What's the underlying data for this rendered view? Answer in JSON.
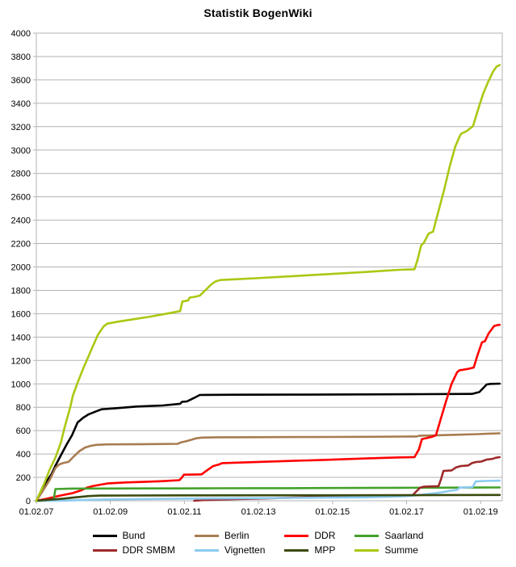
{
  "chart_data": {
    "type": "line",
    "title": "Statistik BogenWiki",
    "grid": "horizontal",
    "grid_color": "#b3b3b3",
    "axis_color": "#b3b3b3",
    "legend_position": "bottom",
    "x_axis": {
      "range": [
        2007.085,
        2019.67
      ],
      "tick_positions": [
        2007.085,
        2009.085,
        2011.085,
        2013.085,
        2015.085,
        2017.085,
        2019.085
      ],
      "tick_labels": [
        "01.02.07",
        "01.02.09",
        "01.02.11",
        "01.02.13",
        "01.02.15",
        "01.02.17",
        "01.02.19"
      ]
    },
    "y_axis": {
      "range": [
        0,
        4000
      ],
      "tick_step": 200
    },
    "legend_rows": [
      [
        "Bund",
        "Berlin",
        "DDR",
        "Saarland"
      ],
      [
        "DDR SMBM",
        "Vignetten",
        "MPP",
        "Summe"
      ]
    ],
    "series": [
      {
        "name": "Bund",
        "color": "#000000",
        "points": [
          [
            2007.085,
            0
          ],
          [
            2007.2,
            60
          ],
          [
            2007.35,
            160
          ],
          [
            2007.5,
            230
          ],
          [
            2007.6,
            300
          ],
          [
            2007.75,
            390
          ],
          [
            2007.9,
            480
          ],
          [
            2008.05,
            560
          ],
          [
            2008.2,
            670
          ],
          [
            2008.35,
            710
          ],
          [
            2008.5,
            740
          ],
          [
            2008.7,
            765
          ],
          [
            2008.85,
            783
          ],
          [
            2009.2,
            790
          ],
          [
            2009.8,
            806
          ],
          [
            2010.5,
            815
          ],
          [
            2010.97,
            830
          ],
          [
            2011.02,
            846
          ],
          [
            2011.15,
            850
          ],
          [
            2011.25,
            865
          ],
          [
            2011.35,
            880
          ],
          [
            2011.5,
            905
          ],
          [
            2012.5,
            907
          ],
          [
            2014,
            908
          ],
          [
            2016,
            910
          ],
          [
            2017.5,
            912
          ],
          [
            2018.85,
            914
          ],
          [
            2019.05,
            930
          ],
          [
            2019.25,
            995
          ],
          [
            2019.35,
            1000
          ],
          [
            2019.6,
            1002
          ]
        ]
      },
      {
        "name": "Berlin",
        "color": "#a87c50",
        "points": [
          [
            2007.085,
            0
          ],
          [
            2007.25,
            80
          ],
          [
            2007.45,
            180
          ],
          [
            2007.6,
            280
          ],
          [
            2007.7,
            310
          ],
          [
            2007.8,
            322
          ],
          [
            2007.95,
            332
          ],
          [
            2008.1,
            380
          ],
          [
            2008.25,
            425
          ],
          [
            2008.4,
            455
          ],
          [
            2008.55,
            470
          ],
          [
            2008.7,
            478
          ],
          [
            2009,
            482
          ],
          [
            2010,
            484
          ],
          [
            2010.9,
            487
          ],
          [
            2011,
            500
          ],
          [
            2011.1,
            507
          ],
          [
            2011.25,
            520
          ],
          [
            2011.4,
            534
          ],
          [
            2011.55,
            540
          ],
          [
            2012,
            543
          ],
          [
            2013,
            544
          ],
          [
            2014,
            545
          ],
          [
            2015,
            546
          ],
          [
            2016,
            547
          ],
          [
            2017,
            549
          ],
          [
            2017.35,
            550
          ],
          [
            2017.45,
            557
          ],
          [
            2018,
            561
          ],
          [
            2018.5,
            565
          ],
          [
            2019,
            570
          ],
          [
            2019.3,
            574
          ],
          [
            2019.6,
            577
          ]
        ]
      },
      {
        "name": "DDR",
        "color": "#ff0000",
        "points": [
          [
            2007.085,
            0
          ],
          [
            2007.4,
            20
          ],
          [
            2007.7,
            42
          ],
          [
            2008.05,
            64
          ],
          [
            2008.3,
            90
          ],
          [
            2008.45,
            112
          ],
          [
            2008.6,
            125
          ],
          [
            2009,
            148
          ],
          [
            2009.5,
            157
          ],
          [
            2010,
            162
          ],
          [
            2010.5,
            168
          ],
          [
            2010.95,
            176
          ],
          [
            2011.02,
            200
          ],
          [
            2011.07,
            223
          ],
          [
            2011.3,
            224
          ],
          [
            2011.55,
            226
          ],
          [
            2011.65,
            250
          ],
          [
            2011.75,
            272
          ],
          [
            2011.85,
            295
          ],
          [
            2011.95,
            305
          ],
          [
            2012,
            308
          ],
          [
            2012.1,
            322
          ],
          [
            2012.5,
            326
          ],
          [
            2013,
            331
          ],
          [
            2014,
            341
          ],
          [
            2015,
            351
          ],
          [
            2016,
            362
          ],
          [
            2016.8,
            370
          ],
          [
            2017.3,
            373
          ],
          [
            2017.42,
            440
          ],
          [
            2017.5,
            528
          ],
          [
            2017.6,
            535
          ],
          [
            2017.78,
            548
          ],
          [
            2017.88,
            560
          ],
          [
            2018,
            690
          ],
          [
            2018.15,
            850
          ],
          [
            2018.3,
            1000
          ],
          [
            2018.45,
            1100
          ],
          [
            2018.52,
            1117
          ],
          [
            2018.6,
            1120
          ],
          [
            2018.75,
            1128
          ],
          [
            2018.9,
            1140
          ],
          [
            2019,
            1245
          ],
          [
            2019.12,
            1355
          ],
          [
            2019.2,
            1365
          ],
          [
            2019.3,
            1430
          ],
          [
            2019.45,
            1495
          ],
          [
            2019.55,
            1503
          ],
          [
            2019.6,
            1505
          ]
        ]
      },
      {
        "name": "Saarland",
        "color": "#44a12b",
        "points": [
          [
            2007.085,
            0
          ],
          [
            2007.55,
            2
          ],
          [
            2007.6,
            100
          ],
          [
            2008,
            104
          ],
          [
            2009,
            105
          ],
          [
            2010,
            106
          ],
          [
            2011,
            106
          ],
          [
            2012,
            107
          ],
          [
            2013,
            108
          ],
          [
            2014,
            108
          ],
          [
            2015,
            109
          ],
          [
            2016,
            110
          ],
          [
            2017,
            111
          ],
          [
            2018,
            112
          ],
          [
            2019,
            113
          ],
          [
            2019.6,
            114
          ]
        ]
      },
      {
        "name": "DDR SMBM",
        "color": "#9e2a2b",
        "points": [
          [
            2011.35,
            0
          ],
          [
            2011.6,
            6
          ],
          [
            2012,
            10
          ],
          [
            2012.5,
            14
          ],
          [
            2013,
            18
          ],
          [
            2013.5,
            22
          ],
          [
            2014,
            26
          ],
          [
            2014.5,
            30
          ],
          [
            2015,
            34
          ],
          [
            2015.5,
            37
          ],
          [
            2016,
            40
          ],
          [
            2016.5,
            43
          ],
          [
            2017,
            46
          ],
          [
            2017.25,
            48
          ],
          [
            2017.35,
            80
          ],
          [
            2017.45,
            112
          ],
          [
            2017.55,
            120
          ],
          [
            2017.7,
            122
          ],
          [
            2017.95,
            125
          ],
          [
            2018.02,
            190
          ],
          [
            2018.08,
            255
          ],
          [
            2018.3,
            260
          ],
          [
            2018.42,
            285
          ],
          [
            2018.55,
            297
          ],
          [
            2018.75,
            302
          ],
          [
            2018.85,
            322
          ],
          [
            2018.95,
            331
          ],
          [
            2019.1,
            335
          ],
          [
            2019.25,
            352
          ],
          [
            2019.4,
            358
          ],
          [
            2019.5,
            368
          ],
          [
            2019.6,
            373
          ]
        ]
      },
      {
        "name": "Vignetten",
        "color": "#8ccbf0",
        "points": [
          [
            2007.085,
            0
          ],
          [
            2007.6,
            1
          ],
          [
            2008,
            3
          ],
          [
            2008.5,
            8
          ],
          [
            2009,
            12
          ],
          [
            2010,
            15
          ],
          [
            2011,
            18
          ],
          [
            2012,
            20
          ],
          [
            2013,
            22
          ],
          [
            2014,
            24
          ],
          [
            2015,
            27
          ],
          [
            2016,
            30
          ],
          [
            2016.6,
            34
          ],
          [
            2017,
            38
          ],
          [
            2017.3,
            45
          ],
          [
            2017.6,
            55
          ],
          [
            2017.9,
            66
          ],
          [
            2018.1,
            76
          ],
          [
            2018.3,
            88
          ],
          [
            2018.45,
            93
          ],
          [
            2018.52,
            112
          ],
          [
            2018.8,
            116
          ],
          [
            2018.88,
            120
          ],
          [
            2018.95,
            165
          ],
          [
            2019.2,
            169
          ],
          [
            2019.6,
            172
          ]
        ]
      },
      {
        "name": "MPP",
        "color": "#3b4a0f",
        "points": [
          [
            2007.085,
            0
          ],
          [
            2007.4,
            8
          ],
          [
            2007.8,
            18
          ],
          [
            2008.1,
            28
          ],
          [
            2008.5,
            40
          ],
          [
            2008.8,
            44
          ],
          [
            2009.5,
            45
          ],
          [
            2011,
            46
          ],
          [
            2013,
            47
          ],
          [
            2015,
            47
          ],
          [
            2017,
            48
          ],
          [
            2018,
            49
          ],
          [
            2019.6,
            50
          ]
        ]
      },
      {
        "name": "Summe",
        "color": "#aac813",
        "points": [
          [
            2007.085,
            0
          ],
          [
            2007.3,
            150
          ],
          [
            2007.45,
            270
          ],
          [
            2007.6,
            368
          ],
          [
            2007.75,
            500
          ],
          [
            2007.85,
            630
          ],
          [
            2008,
            800
          ],
          [
            2008.07,
            898
          ],
          [
            2008.2,
            1010
          ],
          [
            2008.35,
            1130
          ],
          [
            2008.5,
            1240
          ],
          [
            2008.6,
            1313
          ],
          [
            2008.75,
            1420
          ],
          [
            2008.9,
            1490
          ],
          [
            2009,
            1515
          ],
          [
            2009.3,
            1532
          ],
          [
            2009.7,
            1552
          ],
          [
            2010.1,
            1572
          ],
          [
            2010.55,
            1597
          ],
          [
            2010.97,
            1622
          ],
          [
            2011.03,
            1705
          ],
          [
            2011.18,
            1712
          ],
          [
            2011.23,
            1738
          ],
          [
            2011.35,
            1744
          ],
          [
            2011.5,
            1755
          ],
          [
            2011.65,
            1800
          ],
          [
            2011.8,
            1848
          ],
          [
            2011.92,
            1875
          ],
          [
            2012.05,
            1888
          ],
          [
            2012.5,
            1895
          ],
          [
            2013,
            1903
          ],
          [
            2014,
            1921
          ],
          [
            2015,
            1939
          ],
          [
            2016,
            1957
          ],
          [
            2016.9,
            1976
          ],
          [
            2017.3,
            1980
          ],
          [
            2017.38,
            2060
          ],
          [
            2017.48,
            2185
          ],
          [
            2017.55,
            2205
          ],
          [
            2017.68,
            2285
          ],
          [
            2017.8,
            2302
          ],
          [
            2017.95,
            2480
          ],
          [
            2018.1,
            2660
          ],
          [
            2018.25,
            2860
          ],
          [
            2018.4,
            3030
          ],
          [
            2018.5,
            3105
          ],
          [
            2018.56,
            3140
          ],
          [
            2018.7,
            3160
          ],
          [
            2018.88,
            3205
          ],
          [
            2019,
            3330
          ],
          [
            2019.15,
            3480
          ],
          [
            2019.3,
            3590
          ],
          [
            2019.42,
            3670
          ],
          [
            2019.52,
            3715
          ],
          [
            2019.6,
            3727
          ]
        ]
      }
    ]
  }
}
